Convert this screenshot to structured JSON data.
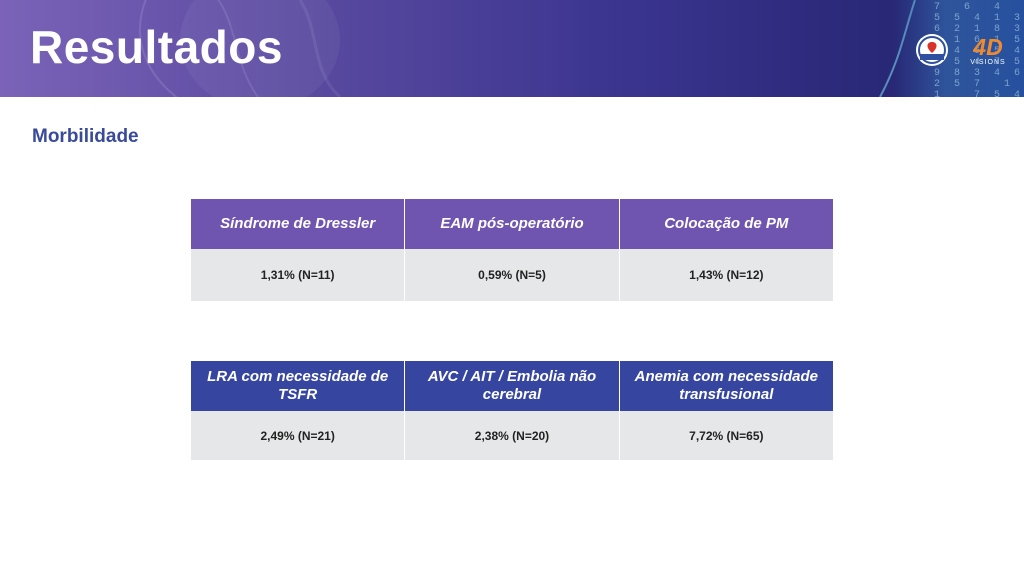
{
  "header": {
    "title": "Resultados",
    "digits": " 7  6  4\n 5 5 4 1 3\n 6 2 1 8 3 2\n 9 1 6 1 5 4\n 4 4 6 5 4 2\n 6 5 4 7 5 1\n 9 8 3 4 6 5\n 2 5 7  1 2 2\n 1   7 5 4",
    "logos": {
      "spcctv_text": "SPCCTV",
      "fourd_big": "4D",
      "fourd_small": "VISIONS"
    }
  },
  "section": {
    "subtitle": "Morbilidade"
  },
  "table1": {
    "headers": [
      "Síndrome de Dressler",
      "EAM pós-operatório",
      "Colocação de PM"
    ],
    "values": [
      "1,31% (N=11)",
      "0,59% (N=5)",
      "1,43% (N=12)"
    ]
  },
  "table2": {
    "headers": [
      "LRA com necessidade de TSFR",
      "AVC / AIT / Embolia não cerebral",
      "Anemia com necessidade transfusional"
    ],
    "values": [
      "2,49% (N=21)",
      "2,38% (N=20)",
      "7,72% (N=65)"
    ]
  },
  "colors": {
    "banner_start": "#7a63b8",
    "banner_end": "#1f2a6e",
    "table1_header": "#6f55b0",
    "table2_header": "#3646a0",
    "subtitle": "#3a4a9a",
    "cell_background": "#e6e7e8",
    "logo_orange": "#f08a2e"
  }
}
